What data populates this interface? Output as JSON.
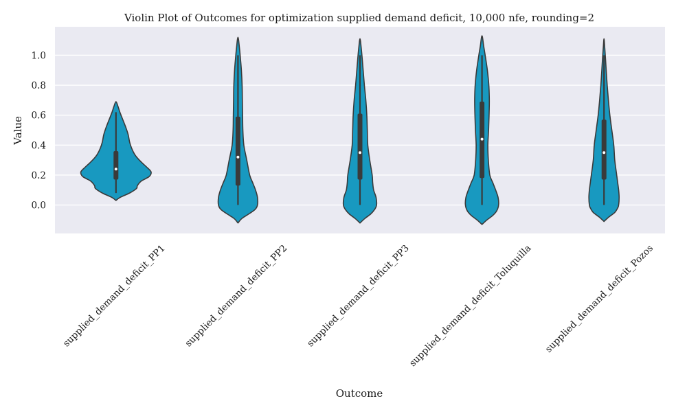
{
  "chart_data": {
    "type": "violin",
    "title": "Violin Plot of Outcomes for optimization supplied demand deficit, 10,000 nfe, rounding=2",
    "xlabel": "Outcome",
    "ylabel": "Value",
    "ylim": [
      -0.19,
      1.19
    ],
    "yticks": [
      "0.0",
      "0.2",
      "0.4",
      "0.6",
      "0.8",
      "1.0"
    ],
    "grid": true,
    "colors": {
      "background": "#eaeaf2",
      "violin_fill": "#1899c0",
      "violin_edge": "#3a3a3a",
      "box": "#3a3a3a",
      "median": "#ffffff"
    },
    "categories": [
      "supplied_demand_deficit_PP1",
      "supplied_demand_deficit_PP2",
      "supplied_demand_deficit_PP3",
      "supplied_demand_deficit_Toluquilla",
      "supplied_demand_deficit_Pozos"
    ],
    "violins": [
      {
        "min": 0.08,
        "q1": 0.17,
        "median": 0.24,
        "q3": 0.36,
        "max": 0.62,
        "profile": [
          [
            0.03,
            0.0
          ],
          [
            0.05,
            0.08
          ],
          [
            0.08,
            0.28
          ],
          [
            0.11,
            0.42
          ],
          [
            0.13,
            0.44
          ],
          [
            0.16,
            0.52
          ],
          [
            0.19,
            0.68
          ],
          [
            0.22,
            0.72
          ],
          [
            0.25,
            0.64
          ],
          [
            0.28,
            0.54
          ],
          [
            0.31,
            0.45
          ],
          [
            0.34,
            0.38
          ],
          [
            0.38,
            0.32
          ],
          [
            0.42,
            0.28
          ],
          [
            0.47,
            0.25
          ],
          [
            0.52,
            0.2
          ],
          [
            0.57,
            0.14
          ],
          [
            0.62,
            0.08
          ],
          [
            0.66,
            0.04
          ],
          [
            0.69,
            0.0
          ]
        ]
      },
      {
        "min": 0.0,
        "q1": 0.13,
        "median": 0.32,
        "q3": 0.59,
        "max": 1.0,
        "profile": [
          [
            -0.12,
            0.0
          ],
          [
            -0.09,
            0.08
          ],
          [
            -0.06,
            0.22
          ],
          [
            -0.03,
            0.35
          ],
          [
            0.0,
            0.4
          ],
          [
            0.05,
            0.4
          ],
          [
            0.1,
            0.36
          ],
          [
            0.15,
            0.3
          ],
          [
            0.2,
            0.24
          ],
          [
            0.3,
            0.18
          ],
          [
            0.4,
            0.12
          ],
          [
            0.5,
            0.1
          ],
          [
            0.6,
            0.095
          ],
          [
            0.7,
            0.09
          ],
          [
            0.8,
            0.085
          ],
          [
            0.9,
            0.07
          ],
          [
            0.98,
            0.05
          ],
          [
            1.05,
            0.03
          ],
          [
            1.12,
            0.0
          ]
        ]
      },
      {
        "min": 0.0,
        "q1": 0.17,
        "median": 0.35,
        "q3": 0.61,
        "max": 1.0,
        "profile": [
          [
            -0.12,
            0.0
          ],
          [
            -0.09,
            0.1
          ],
          [
            -0.06,
            0.22
          ],
          [
            -0.03,
            0.3
          ],
          [
            0.0,
            0.34
          ],
          [
            0.05,
            0.33
          ],
          [
            0.1,
            0.28
          ],
          [
            0.15,
            0.26
          ],
          [
            0.2,
            0.25
          ],
          [
            0.3,
            0.2
          ],
          [
            0.4,
            0.16
          ],
          [
            0.5,
            0.15
          ],
          [
            0.6,
            0.14
          ],
          [
            0.7,
            0.12
          ],
          [
            0.8,
            0.09
          ],
          [
            0.9,
            0.065
          ],
          [
            0.98,
            0.045
          ],
          [
            1.05,
            0.025
          ],
          [
            1.11,
            0.0
          ]
        ]
      },
      {
        "min": 0.0,
        "q1": 0.18,
        "median": 0.44,
        "q3": 0.69,
        "max": 1.0,
        "profile": [
          [
            -0.13,
            0.0
          ],
          [
            -0.1,
            0.1
          ],
          [
            -0.07,
            0.22
          ],
          [
            -0.04,
            0.3
          ],
          [
            0.0,
            0.34
          ],
          [
            0.05,
            0.33
          ],
          [
            0.1,
            0.28
          ],
          [
            0.15,
            0.22
          ],
          [
            0.2,
            0.16
          ],
          [
            0.3,
            0.13
          ],
          [
            0.4,
            0.12
          ],
          [
            0.5,
            0.135
          ],
          [
            0.6,
            0.145
          ],
          [
            0.7,
            0.15
          ],
          [
            0.8,
            0.14
          ],
          [
            0.9,
            0.11
          ],
          [
            1.0,
            0.065
          ],
          [
            1.06,
            0.035
          ],
          [
            1.13,
            0.0
          ]
        ]
      },
      {
        "min": 0.0,
        "q1": 0.17,
        "median": 0.35,
        "q3": 0.57,
        "max": 1.0,
        "profile": [
          [
            -0.11,
            0.0
          ],
          [
            -0.08,
            0.1
          ],
          [
            -0.05,
            0.22
          ],
          [
            -0.02,
            0.28
          ],
          [
            0.0,
            0.3
          ],
          [
            0.05,
            0.31
          ],
          [
            0.1,
            0.3
          ],
          [
            0.15,
            0.28
          ],
          [
            0.2,
            0.26
          ],
          [
            0.3,
            0.22
          ],
          [
            0.4,
            0.2
          ],
          [
            0.5,
            0.16
          ],
          [
            0.6,
            0.12
          ],
          [
            0.7,
            0.09
          ],
          [
            0.8,
            0.065
          ],
          [
            0.9,
            0.045
          ],
          [
            0.98,
            0.03
          ],
          [
            1.05,
            0.015
          ],
          [
            1.11,
            0.0
          ]
        ]
      }
    ]
  }
}
